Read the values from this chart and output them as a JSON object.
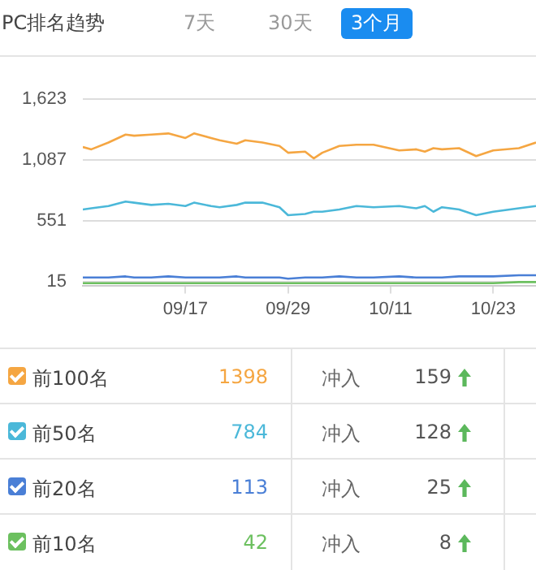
{
  "chart_data": {
    "type": "line",
    "title": "PC排名趋势",
    "x": [
      "--09-05",
      "--09-06",
      "--09-08",
      "--09-10",
      "--09-11",
      "--09-13",
      "--09-15",
      "--09-17",
      "--09-18",
      "--09-20",
      "--09-21",
      "--09-23",
      "--09-24",
      "--09-26",
      "--09-28",
      "--09-29",
      "--10-01",
      "--10-02",
      "--10-03",
      "--10-05",
      "--10-07",
      "--10-09",
      "--10-12",
      "--10-14",
      "--10-15",
      "--10-16",
      "--10-17",
      "--10-19",
      "--10-21",
      "--10-23",
      "--10-26",
      "--10-28"
    ],
    "series": [
      {
        "name": "前100名",
        "color": "#f5a642",
        "values": [
          1200,
          1180,
          1240,
          1310,
          1300,
          1310,
          1320,
          1280,
          1320,
          1280,
          1260,
          1230,
          1260,
          1240,
          1210,
          1150,
          1160,
          1100,
          1150,
          1210,
          1220,
          1220,
          1170,
          1180,
          1160,
          1190,
          1180,
          1190,
          1120,
          1170,
          1190,
          1240
        ]
      },
      {
        "name": "前50名",
        "color": "#4bb8d9",
        "values": [
          650,
          660,
          680,
          720,
          710,
          690,
          700,
          680,
          710,
          680,
          670,
          690,
          710,
          710,
          670,
          600,
          610,
          630,
          630,
          650,
          680,
          670,
          680,
          660,
          680,
          630,
          670,
          650,
          600,
          630,
          660,
          680
        ]
      },
      {
        "name": "前20名",
        "color": "#4a7fd6",
        "values": [
          50,
          50,
          50,
          60,
          50,
          50,
          60,
          50,
          50,
          50,
          50,
          60,
          50,
          50,
          50,
          40,
          50,
          50,
          50,
          60,
          50,
          50,
          60,
          50,
          50,
          50,
          50,
          60,
          60,
          60,
          70,
          70
        ]
      },
      {
        "name": "前10名",
        "color": "#6cc05f",
        "values": [
          0,
          0,
          0,
          0,
          0,
          0,
          0,
          0,
          0,
          0,
          0,
          0,
          0,
          0,
          0,
          0,
          0,
          0,
          0,
          0,
          0,
          0,
          0,
          0,
          0,
          0,
          0,
          0,
          0,
          0,
          10,
          10
        ]
      }
    ],
    "ylim": [
      -20,
      1623
    ],
    "yticks": [
      15,
      551,
      {
        "value": 1087,
        "label": "1,087"
      },
      {
        "value": 1623,
        "label": "1,623"
      }
    ],
    "xlim": [
      "--09-05",
      "--10-28"
    ],
    "xticks": [
      {
        "value": "--09-17",
        "label": "09/17"
      },
      {
        "value": "--09-29",
        "label": "09/29"
      },
      {
        "value": "--10-11",
        "label": "10/11"
      },
      {
        "value": "--10-23",
        "label": "10/23"
      }
    ],
    "grid": "y",
    "legend": "bottom",
    "marker": "none",
    "line_style": "solid",
    "annotations": [
      "7天",
      "30天",
      "3个月",
      "1398",
      "冲入",
      "159",
      "784",
      "冲入",
      "128",
      "113",
      "冲入",
      "25",
      "42",
      "冲入",
      "8"
    ]
  }
}
